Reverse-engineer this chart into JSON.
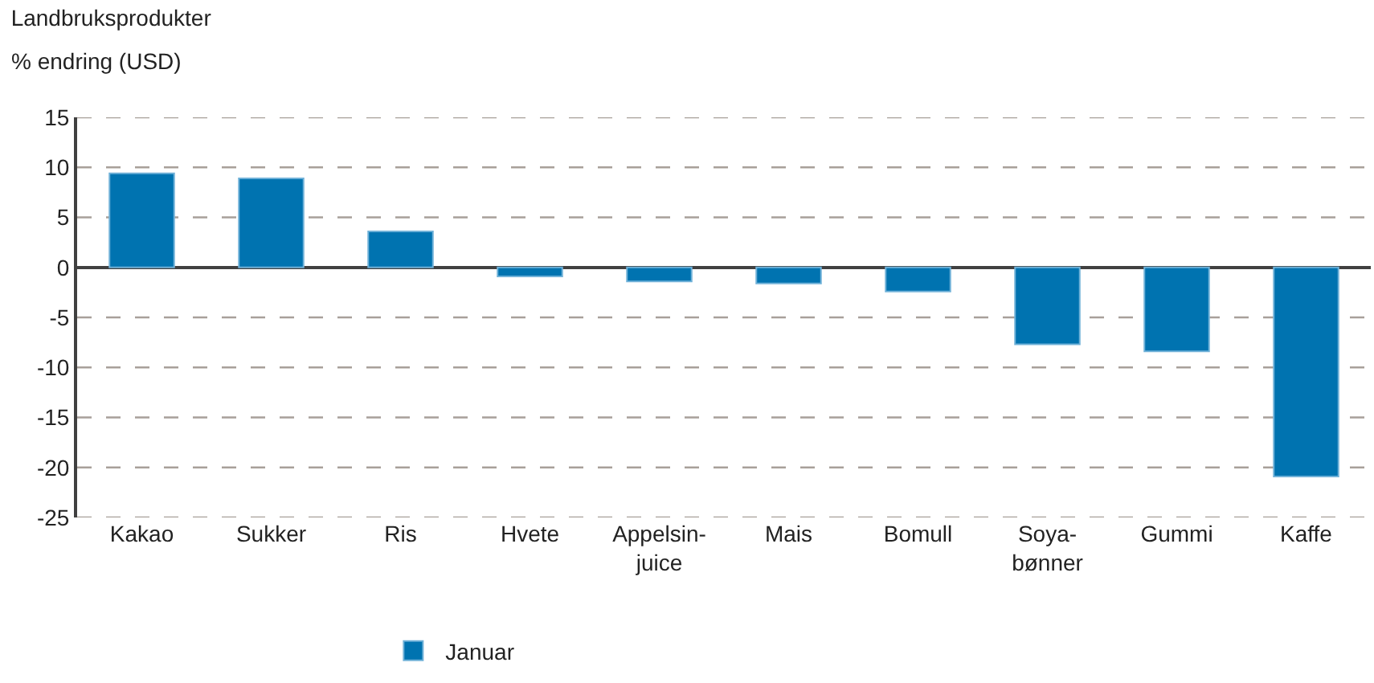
{
  "chart_data": {
    "type": "bar",
    "title": "Landbruksprodukter",
    "ylabel": "% endring (USD)",
    "categories": [
      "Kakao",
      "Sukker",
      "Ris",
      "Hvete",
      "Appelsin-\njuice",
      "Mais",
      "Bomull",
      "Soya-\nbønner",
      "Gummi",
      "Kaffe"
    ],
    "series": [
      {
        "name": "Januar",
        "color": "#0073b0",
        "values": [
          9.4,
          8.9,
          3.6,
          -0.9,
          -1.4,
          -1.6,
          -2.4,
          -7.7,
          -8.4,
          -20.9
        ]
      }
    ],
    "ylim": [
      -25,
      15
    ],
    "yticks": [
      -25,
      -20,
      -15,
      -10,
      -5,
      0,
      5,
      10,
      15
    ],
    "grid": "y",
    "legend": "bottom"
  }
}
